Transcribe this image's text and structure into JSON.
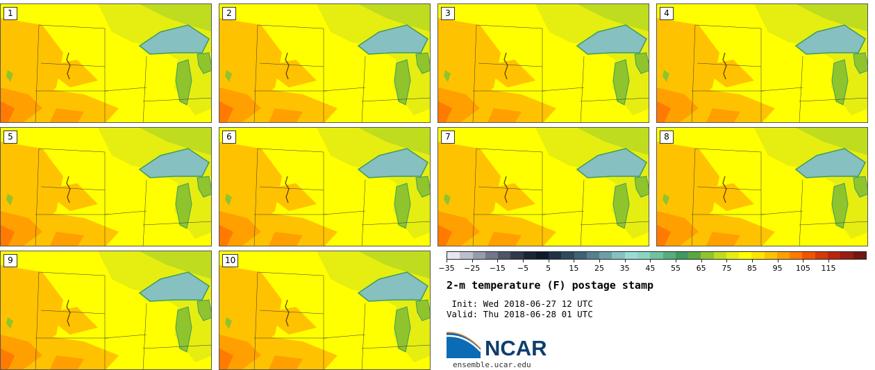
{
  "panels": [
    {
      "label": "1"
    },
    {
      "label": "2"
    },
    {
      "label": "3"
    },
    {
      "label": "4"
    },
    {
      "label": "5"
    },
    {
      "label": "6"
    },
    {
      "label": "7"
    },
    {
      "label": "8"
    },
    {
      "label": "9"
    },
    {
      "label": "10"
    }
  ],
  "colorbar": {
    "colors": [
      "#e6e6f0",
      "#bcc0cc",
      "#969cac",
      "#71788c",
      "#4e5668",
      "#2f3a4d",
      "#1a2538",
      "#0e1a2b",
      "#1f3347",
      "#2f4a5e",
      "#3f6276",
      "#56808f",
      "#6e9fa6",
      "#86c0c0",
      "#99dcd6",
      "#8ad5c0",
      "#6dc49e",
      "#55ae7c",
      "#3f9a5f",
      "#5aa843",
      "#8fc42d",
      "#bfdc1e",
      "#e5ee10",
      "#ffff00",
      "#ffe300",
      "#ffc200",
      "#ff9f00",
      "#ff7a00",
      "#f25400",
      "#d63a08",
      "#b8280e",
      "#971f10",
      "#741812"
    ],
    "tick_labels": [
      "−35",
      "−25",
      "−15",
      "−5",
      "5",
      "15",
      "25",
      "35",
      "45",
      "55",
      "65",
      "75",
      "85",
      "95",
      "105",
      "115"
    ]
  },
  "title": "2-m temperature (F) postage stamp",
  "init_text": " Init: Wed 2018-06-27 12 UTC",
  "valid_text": "Valid: Thu 2018-06-28 01 UTC",
  "logo_text": "NCAR",
  "url_text": "ensemble.ucar.edu",
  "map_colors": {
    "warm": "#ffff00",
    "warmer": "#ffc200",
    "hot": "#ff9f00",
    "hottest": "#ff7a00",
    "mild": "#e5ee10",
    "cool": "#bfdc1e",
    "cooler": "#8fc42d",
    "lake": "#86c0c0",
    "lake_edge": "#3f9a5f"
  }
}
